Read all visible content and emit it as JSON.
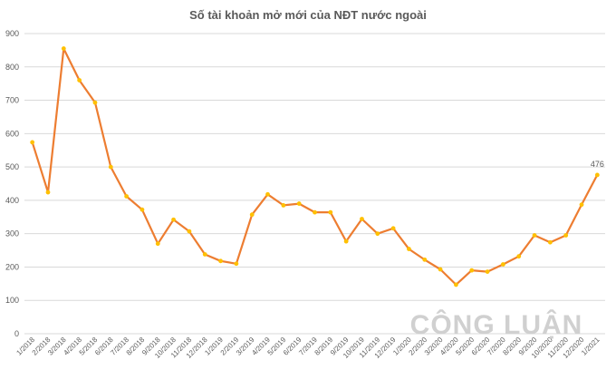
{
  "chart_data": {
    "type": "line",
    "title": "Số tài khoản mở mới của NĐT nước ngoài",
    "xlabel": "",
    "ylabel": "",
    "ylim": [
      0,
      900
    ],
    "yticks": [
      0,
      100,
      200,
      300,
      400,
      500,
      600,
      700,
      800,
      900
    ],
    "grid": true,
    "legend": "none",
    "categories": [
      "1/2018",
      "2/2018",
      "3/2018",
      "4/2018",
      "5/2018",
      "6/2018",
      "7/2018",
      "8/2018",
      "9/2018",
      "10/2018",
      "11/2018",
      "12/2018",
      "1/2019",
      "2/2019",
      "3/2019",
      "4/2019",
      "5/2019",
      "6/2019",
      "7/2019",
      "8/2019",
      "9/2019",
      "10/2019",
      "11/2019",
      "12/2019",
      "1/2020",
      "2/2020",
      "3/2020",
      "4/2020",
      "5/2020",
      "6/2020",
      "7/2020",
      "8/2020",
      "9/2020",
      "10/2020",
      "11/2020",
      "12/2020",
      "1/2021"
    ],
    "series": [
      {
        "values": [
          574,
          424,
          855,
          760,
          693,
          500,
          412,
          372,
          270,
          342,
          307,
          238,
          218,
          210,
          357,
          418,
          385,
          390,
          364,
          364,
          277,
          344,
          300,
          316,
          254,
          222,
          193,
          147,
          190,
          186,
          208,
          232,
          295,
          274,
          295,
          387,
          476
        ],
        "color": "#ED7D31",
        "marker_color": "#FFC000"
      }
    ],
    "data_labels": [
      {
        "category": "1/2021",
        "text": "476"
      }
    ]
  },
  "watermark": {
    "text": "CÔNG LUẬN",
    "color": "#d0d0d0"
  }
}
